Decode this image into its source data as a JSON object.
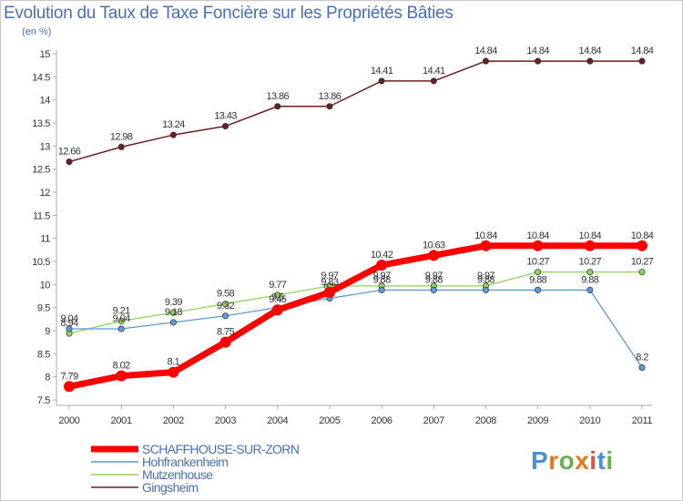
{
  "header": {
    "title": "Evolution du Taux de Taxe Foncière sur les Propriétés Bâties",
    "subtitle": "(en %)"
  },
  "logo": {
    "text": "Proxiti",
    "letters": [
      "P",
      "r",
      "o",
      "x",
      "i",
      "t",
      "i"
    ],
    "colors": [
      "#4d8fd6",
      "#e8751a",
      "#6ab04c",
      "#e8751a",
      "#d9534f",
      "#4d8fd6",
      "#6ab04c"
    ]
  },
  "chart_data": {
    "type": "line",
    "title": "Evolution du Taux de Taxe Foncière sur les Propriétés Bâties",
    "ylabel": "(en %)",
    "xlabel": "",
    "x": [
      "2000",
      "2001",
      "2002",
      "2003",
      "2004",
      "2005",
      "2006",
      "2007",
      "2008",
      "2009",
      "2010",
      "2011"
    ],
    "ylim": [
      7.5,
      15
    ],
    "yticks": [
      "7.5",
      "8",
      "8.5",
      "9",
      "9.5",
      "10",
      "10.5",
      "11",
      "11.5",
      "12",
      "12.5",
      "13",
      "13.5",
      "14",
      "14.5",
      "15"
    ],
    "grid": false,
    "legend_position": "bottom-left",
    "series": [
      {
        "name": "Gingsheim",
        "color": "#6b1f24",
        "values": [
          12.66,
          12.98,
          13.24,
          13.43,
          13.86,
          13.86,
          14.41,
          14.41,
          14.84,
          14.84,
          14.84,
          14.84
        ],
        "labels": [
          "12.66",
          "12.98",
          "13.24",
          "13.43",
          "13.86",
          "13.86",
          "14.41",
          "14.41",
          "14.84",
          "14.84",
          "14.84",
          "14.84"
        ]
      },
      {
        "name": "Mutzenhouse",
        "color": "#8fd45a",
        "values": [
          8.94,
          9.21,
          9.39,
          9.58,
          9.77,
          9.97,
          9.97,
          9.97,
          9.97,
          10.27,
          10.27,
          10.27
        ],
        "labels": [
          "8.94",
          "9.21",
          "9.39",
          "9.58",
          "9.77",
          "9.97",
          "9.97",
          "9.97",
          "9.97",
          "10.27",
          "10.27",
          "10.27"
        ]
      },
      {
        "name": "Hohfrankenheim",
        "color": "#5b9ad6",
        "values": [
          9.04,
          9.04,
          9.18,
          9.32,
          9.5,
          9.7,
          9.88,
          9.88,
          9.88,
          9.88,
          9.88,
          8.2
        ],
        "labels": [
          "9.04",
          "9.04",
          "9.18",
          "9.32",
          "9.5",
          "9.7",
          "9.88",
          "9.88",
          "9.88",
          "9.88",
          "9.88",
          "8.2"
        ]
      },
      {
        "name": "SCHAFFHOUSE-SUR-ZORN",
        "color": "#ff0000",
        "values": [
          7.79,
          8.02,
          8.1,
          8.75,
          9.45,
          9.83,
          10.42,
          10.63,
          10.84,
          10.84,
          10.84,
          10.84
        ],
        "labels": [
          "7.79",
          "8.02",
          "8.1",
          "8.75",
          "9.45",
          "9.83",
          "10.42",
          "10.63",
          "10.84",
          "10.84",
          "10.84",
          "10.84"
        ]
      }
    ],
    "legend_order": [
      "SCHAFFHOUSE-SUR-ZORN",
      "Hohfrankenheim",
      "Mutzenhouse",
      "Gingsheim"
    ]
  }
}
